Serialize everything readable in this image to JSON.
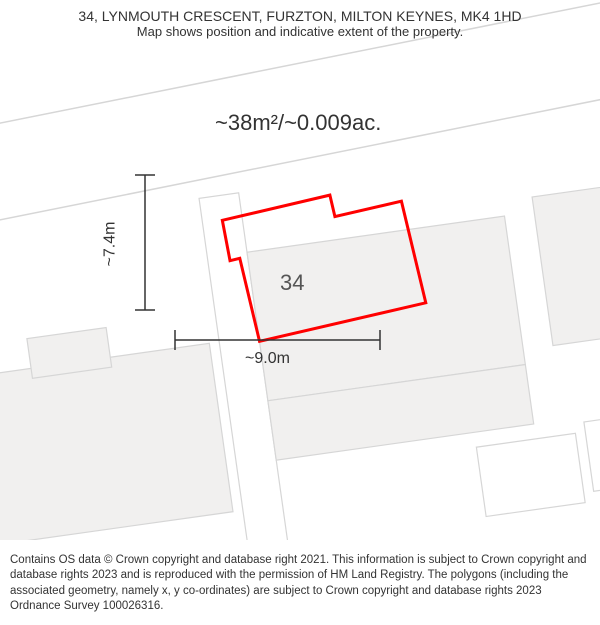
{
  "header": {
    "title": "34, LYNMOUTH CRESCENT, FURZTON, MILTON KEYNES, MK4 1HD",
    "subtitle": "Map shows position and indicative extent of the property."
  },
  "map": {
    "area_label": "~38m²/~0.009ac.",
    "height_label": "~7.4m",
    "width_label": "~9.0m",
    "house_number": "34",
    "colors": {
      "road_fill": "#ffffff",
      "road_edge": "#d6d6d6",
      "building_fill": "#f1f0ef",
      "building_stroke": "#d6d6d6",
      "boundary_stroke": "#ff0000",
      "dim_stroke": "#333333",
      "bg": "#ffffff"
    },
    "boundary_stroke_width": 3,
    "building_stroke_width": 1.2,
    "road_edge_width": 1.5,
    "dim_stroke_width": 1.5,
    "rotation_deg": -8
  },
  "footer": {
    "text": "Contains OS data © Crown copyright and database right 2021. This information is subject to Crown copyright and database rights 2023 and is reproduced with the permission of HM Land Registry. The polygons (including the associated geometry, namely x, y co-ordinates) are subject to Crown copyright and database rights 2023 Ordnance Survey 100026316."
  }
}
